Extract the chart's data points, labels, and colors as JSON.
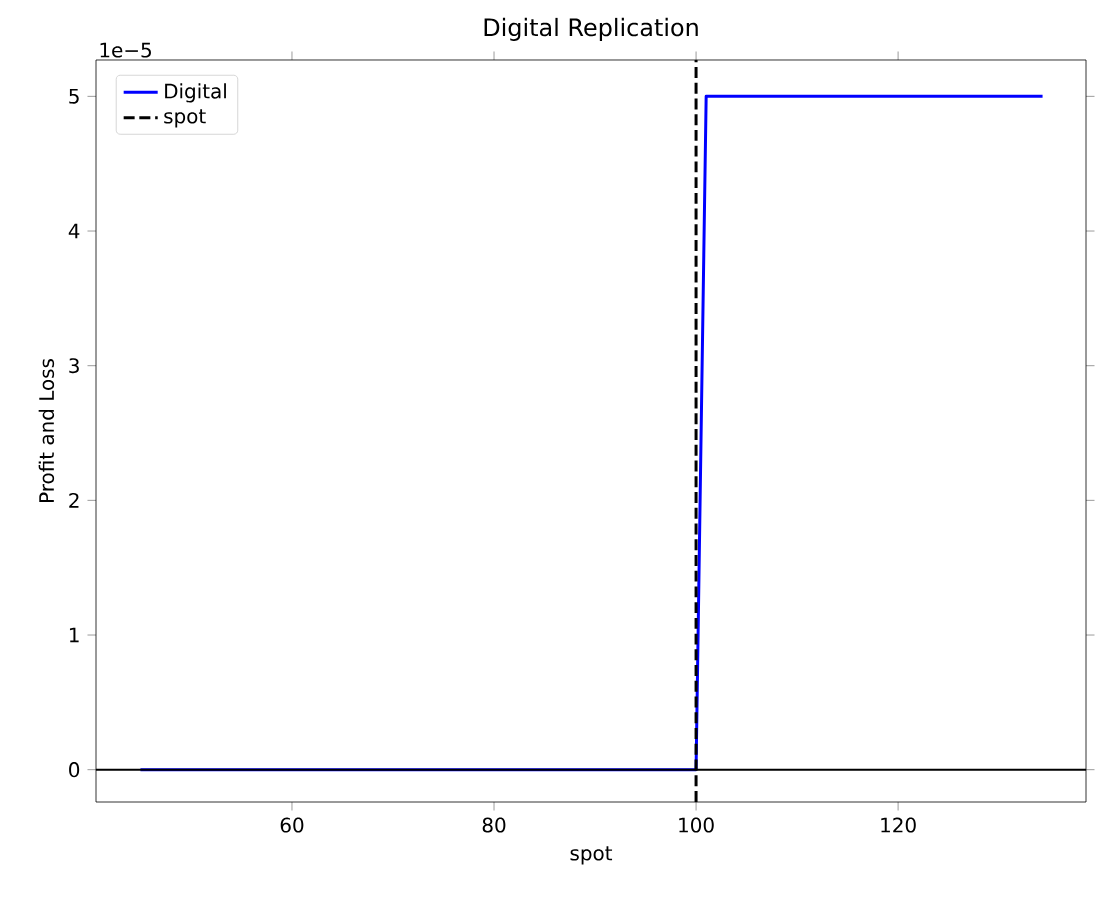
{
  "chart_data": {
    "type": "line",
    "title": "Digital Replication",
    "xlabel": "spot",
    "ylabel": "Profit and Loss",
    "series": [
      {
        "name": "Digital",
        "color": "#0000ff",
        "x": [
          45,
          100,
          101,
          134.3
        ],
        "values": [
          0,
          0,
          5,
          5
        ]
      }
    ],
    "xlim": [
      40.6,
      138.6
    ],
    "xticks": [
      60,
      80,
      100,
      120
    ],
    "ylim": [
      -0.24,
      5.27
    ],
    "yticks": [
      0,
      1,
      2,
      3,
      4,
      5
    ],
    "ref_lines": [
      {
        "axis": "x",
        "value": 100,
        "label": "spot",
        "color": "#000000",
        "line_style": "dashed"
      },
      {
        "axis": "y",
        "value": 0,
        "color": "#000000",
        "line_style": "solid"
      }
    ],
    "annotations": [
      "1e−5"
    ],
    "legend": "top left",
    "grid": false,
    "marker": "none",
    "line_style": "solid"
  }
}
